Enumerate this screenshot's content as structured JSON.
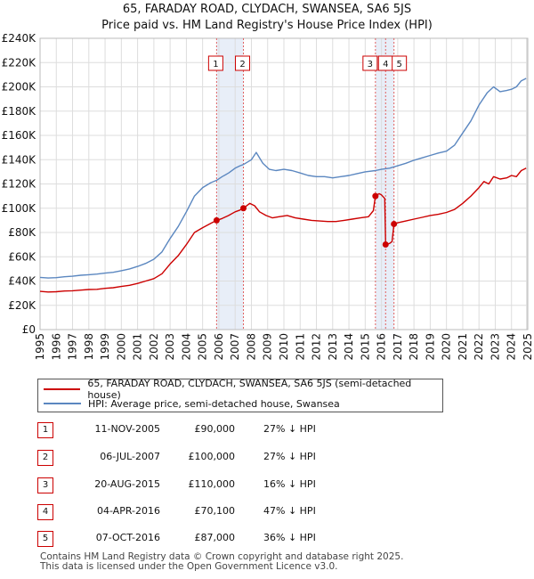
{
  "chart_data": {
    "type": "line",
    "title": "65, FARADAY ROAD, CLYDACH, SWANSEA, SA6 5JS",
    "subtitle": "Price paid vs. HM Land Registry's House Price Index (HPI)",
    "xlim": [
      1995,
      2025
    ],
    "ylim": [
      0,
      240000
    ],
    "x_ticks": [
      1995,
      1996,
      1997,
      1998,
      1999,
      2000,
      2001,
      2002,
      2003,
      2004,
      2005,
      2006,
      2007,
      2008,
      2009,
      2010,
      2011,
      2012,
      2013,
      2014,
      2015,
      2016,
      2017,
      2018,
      2019,
      2020,
      2021,
      2022,
      2023,
      2024,
      2025
    ],
    "y_ticks": [
      {
        "value": 0,
        "label": "£0"
      },
      {
        "value": 20000,
        "label": "£20K"
      },
      {
        "value": 40000,
        "label": "£40K"
      },
      {
        "value": 60000,
        "label": "£60K"
      },
      {
        "value": 80000,
        "label": "£80K"
      },
      {
        "value": 100000,
        "label": "£100K"
      },
      {
        "value": 120000,
        "label": "£120K"
      },
      {
        "value": 140000,
        "label": "£140K"
      },
      {
        "value": 160000,
        "label": "£160K"
      },
      {
        "value": 180000,
        "label": "£180K"
      },
      {
        "value": 200000,
        "label": "£200K"
      },
      {
        "value": 220000,
        "label": "£220K"
      },
      {
        "value": 240000,
        "label": "£240K"
      }
    ],
    "grid": true,
    "colors": {
      "property": "#cc0000",
      "hpi": "#5b87c0",
      "shade": "#e8eef8",
      "marker_line": "#e06060"
    },
    "shaded_spans": [
      [
        2005.86,
        2007.51
      ],
      [
        2015.63,
        2016.77
      ]
    ],
    "series": [
      {
        "name": "65, FARADAY ROAD, CLYDACH, SWANSEA, SA6 5JS (semi-detached house)",
        "color": "#cc0000",
        "points": [
          [
            1995.0,
            31500
          ],
          [
            1995.5,
            31000
          ],
          [
            1996.0,
            31200
          ],
          [
            1996.5,
            31800
          ],
          [
            1997.0,
            32000
          ],
          [
            1997.5,
            32500
          ],
          [
            1998.0,
            33000
          ],
          [
            1998.5,
            33200
          ],
          [
            1999.0,
            34000
          ],
          [
            1999.5,
            34500
          ],
          [
            2000.0,
            35500
          ],
          [
            2000.5,
            36500
          ],
          [
            2001.0,
            38000
          ],
          [
            2001.5,
            40000
          ],
          [
            2002.0,
            42000
          ],
          [
            2002.5,
            46000
          ],
          [
            2003.0,
            54000
          ],
          [
            2003.5,
            61000
          ],
          [
            2004.0,
            70000
          ],
          [
            2004.5,
            80000
          ],
          [
            2005.0,
            84000
          ],
          [
            2005.5,
            87500
          ],
          [
            2005.86,
            90000
          ],
          [
            2006.2,
            91500
          ],
          [
            2006.6,
            94000
          ],
          [
            2007.0,
            97000
          ],
          [
            2007.3,
            98500
          ],
          [
            2007.51,
            100000
          ],
          [
            2007.9,
            104000
          ],
          [
            2008.2,
            102000
          ],
          [
            2008.5,
            97000
          ],
          [
            2008.9,
            94000
          ],
          [
            2009.3,
            92000
          ],
          [
            2009.7,
            93000
          ],
          [
            2010.2,
            94000
          ],
          [
            2010.7,
            92000
          ],
          [
            2011.2,
            91000
          ],
          [
            2011.7,
            90000
          ],
          [
            2012.2,
            89500
          ],
          [
            2012.7,
            89000
          ],
          [
            2013.2,
            89000
          ],
          [
            2013.7,
            90000
          ],
          [
            2014.2,
            91000
          ],
          [
            2014.7,
            92000
          ],
          [
            2015.2,
            93000
          ],
          [
            2015.5,
            98000
          ],
          [
            2015.63,
            110000
          ],
          [
            2015.85,
            112000
          ],
          [
            2016.0,
            111000
          ],
          [
            2016.2,
            108000
          ],
          [
            2016.255,
            70100
          ],
          [
            2016.5,
            71000
          ],
          [
            2016.65,
            72500
          ],
          [
            2016.77,
            87000
          ],
          [
            2017.0,
            88000
          ],
          [
            2017.5,
            89500
          ],
          [
            2018.0,
            91000
          ],
          [
            2018.5,
            92500
          ],
          [
            2019.0,
            94000
          ],
          [
            2019.5,
            95000
          ],
          [
            2020.0,
            96500
          ],
          [
            2020.5,
            99000
          ],
          [
            2021.0,
            104000
          ],
          [
            2021.5,
            110000
          ],
          [
            2022.0,
            117000
          ],
          [
            2022.3,
            122000
          ],
          [
            2022.6,
            120000
          ],
          [
            2022.9,
            126000
          ],
          [
            2023.3,
            124000
          ],
          [
            2023.7,
            125000
          ],
          [
            2024.0,
            127000
          ],
          [
            2024.3,
            126000
          ],
          [
            2024.6,
            131000
          ],
          [
            2024.9,
            133000
          ]
        ]
      },
      {
        "name": "HPI: Average price, semi-detached house, Swansea",
        "color": "#5b87c0",
        "points": [
          [
            1995.0,
            43000
          ],
          [
            1995.5,
            42500
          ],
          [
            1996.0,
            42800
          ],
          [
            1996.5,
            43500
          ],
          [
            1997.0,
            44000
          ],
          [
            1997.5,
            44800
          ],
          [
            1998.0,
            45200
          ],
          [
            1998.5,
            45700
          ],
          [
            1999.0,
            46500
          ],
          [
            1999.5,
            47200
          ],
          [
            2000.0,
            48500
          ],
          [
            2000.5,
            50000
          ],
          [
            2001.0,
            52000
          ],
          [
            2001.5,
            54500
          ],
          [
            2002.0,
            58000
          ],
          [
            2002.5,
            64000
          ],
          [
            2003.0,
            75000
          ],
          [
            2003.5,
            85000
          ],
          [
            2004.0,
            97000
          ],
          [
            2004.5,
            110000
          ],
          [
            2005.0,
            117000
          ],
          [
            2005.5,
            121000
          ],
          [
            2005.86,
            123000
          ],
          [
            2006.2,
            126000
          ],
          [
            2006.6,
            129000
          ],
          [
            2007.0,
            133000
          ],
          [
            2007.3,
            135000
          ],
          [
            2007.51,
            136000
          ],
          [
            2008.0,
            140000
          ],
          [
            2008.3,
            146000
          ],
          [
            2008.7,
            137000
          ],
          [
            2009.1,
            132000
          ],
          [
            2009.5,
            131000
          ],
          [
            2010.0,
            132000
          ],
          [
            2010.5,
            131000
          ],
          [
            2011.0,
            129000
          ],
          [
            2011.5,
            127000
          ],
          [
            2012.0,
            126000
          ],
          [
            2012.5,
            126000
          ],
          [
            2013.0,
            125000
          ],
          [
            2013.5,
            126000
          ],
          [
            2014.0,
            127000
          ],
          [
            2014.5,
            128500
          ],
          [
            2015.0,
            130000
          ],
          [
            2015.63,
            131000
          ],
          [
            2016.0,
            132000
          ],
          [
            2016.5,
            133000
          ],
          [
            2017.0,
            135000
          ],
          [
            2017.5,
            137000
          ],
          [
            2018.0,
            139500
          ],
          [
            2018.5,
            141500
          ],
          [
            2019.0,
            143500
          ],
          [
            2019.5,
            145500
          ],
          [
            2020.0,
            147000
          ],
          [
            2020.5,
            152000
          ],
          [
            2021.0,
            162000
          ],
          [
            2021.5,
            172000
          ],
          [
            2022.0,
            185000
          ],
          [
            2022.5,
            195000
          ],
          [
            2022.9,
            200000
          ],
          [
            2023.3,
            196000
          ],
          [
            2023.7,
            197000
          ],
          [
            2024.0,
            198000
          ],
          [
            2024.3,
            200000
          ],
          [
            2024.6,
            205000
          ],
          [
            2024.9,
            207000
          ]
        ]
      }
    ],
    "sales": [
      {
        "label": "1",
        "x": 2005.86,
        "y": 90000
      },
      {
        "label": "2",
        "x": 2007.51,
        "y": 100000
      },
      {
        "label": "3",
        "x": 2015.63,
        "y": 110000
      },
      {
        "label": "4",
        "x": 2016.255,
        "y": 70100
      },
      {
        "label": "5",
        "x": 2016.77,
        "y": 87000
      }
    ]
  },
  "legend": {
    "property_label": "65, FARADAY ROAD, CLYDACH, SWANSEA, SA6 5JS (semi-detached house)",
    "hpi_label": "HPI: Average price, semi-detached house, Swansea"
  },
  "transactions": [
    {
      "num": "1",
      "date": "11-NOV-2005",
      "price": "£90,000",
      "hpi": "27% ↓ HPI"
    },
    {
      "num": "2",
      "date": "06-JUL-2007",
      "price": "£100,000",
      "hpi": "27% ↓ HPI"
    },
    {
      "num": "3",
      "date": "20-AUG-2015",
      "price": "£110,000",
      "hpi": "16% ↓ HPI"
    },
    {
      "num": "4",
      "date": "04-APR-2016",
      "price": "£70,100",
      "hpi": "47% ↓ HPI"
    },
    {
      "num": "5",
      "date": "07-OCT-2016",
      "price": "£87,000",
      "hpi": "36% ↓ HPI"
    }
  ],
  "footer": {
    "line1": "Contains HM Land Registry data © Crown copyright and database right 2025.",
    "line2": "This data is licensed under the Open Government Licence v3.0."
  }
}
